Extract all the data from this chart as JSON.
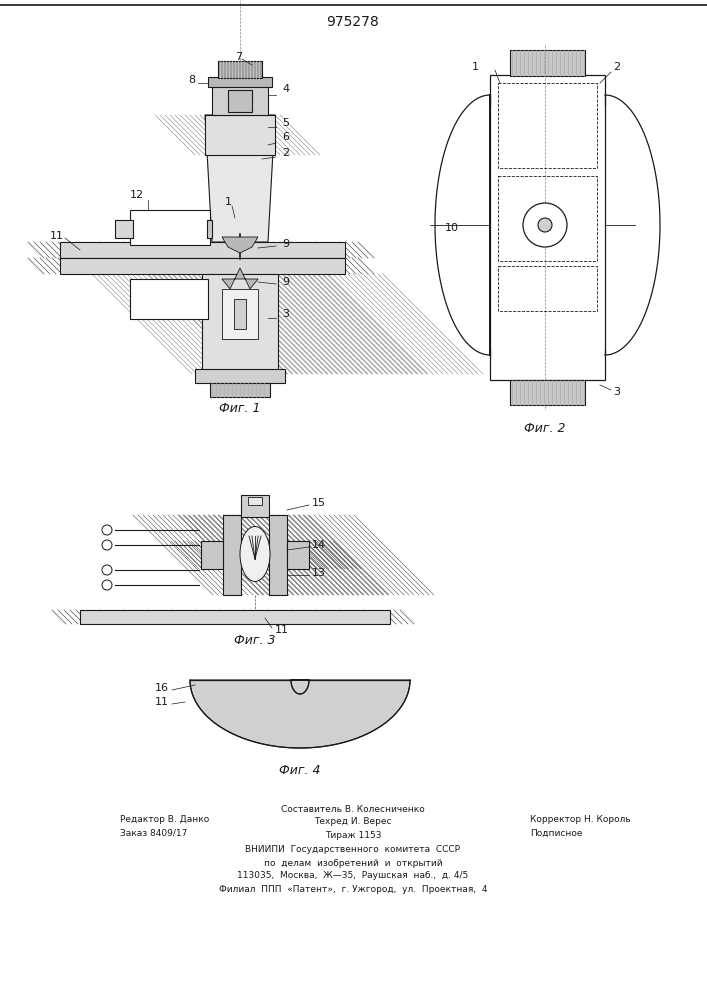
{
  "title": "975278",
  "title_fontsize": 10,
  "background_color": "#ffffff",
  "line_color": "#1a1a1a",
  "fig1_label": "Фиг. 1",
  "fig2_label": "Фиг. 2",
  "fig3_label": "Фиг. 3",
  "fig4_label": "Фиг. 4",
  "footer_col1_line1": "Редактор В. Данко",
  "footer_col1_line2": "Заказ 8409/17",
  "footer_col2_line0": "Составитель В. Колесниченко",
  "footer_col2_line1": "Техред И. Верес",
  "footer_col2_line2": "Тираж 1153",
  "footer_col3_line1": "Корректор Н. Король",
  "footer_col3_line2": "Подписное",
  "footer_vniip1": "ВНИИПИ  Государственного  комитета  СССР",
  "footer_vniip2": "по  делам  изобретений  и  открытий",
  "footer_vniip3": "113035,  Москва,  Ж—35,  Раушская  наб.,  д. 4/5",
  "footer_vniip4": "Филиал  ППП  «Патент»,  г. Ужгород,  ул.  Проектная,  4"
}
